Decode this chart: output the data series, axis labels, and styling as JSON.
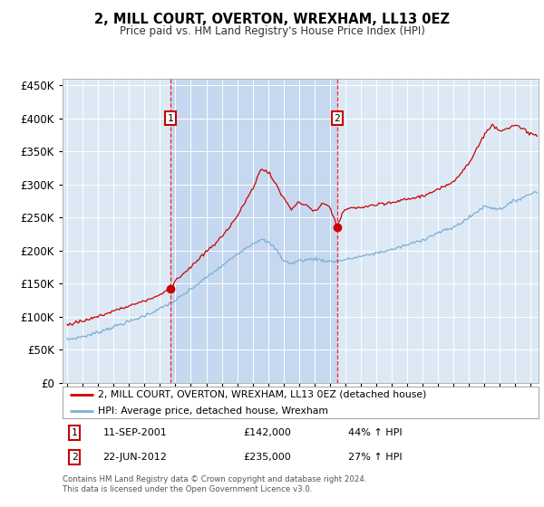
{
  "title": "2, MILL COURT, OVERTON, WREXHAM, LL13 0EZ",
  "subtitle": "Price paid vs. HM Land Registry's House Price Index (HPI)",
  "plot_bg_color": "#dce9f5",
  "shaded_bg_color": "#c5d8ef",
  "property_color": "#cc0000",
  "hpi_color": "#7bafd4",
  "ylim": [
    0,
    460000
  ],
  "yticks": [
    0,
    50000,
    100000,
    150000,
    200000,
    250000,
    300000,
    350000,
    400000,
    450000
  ],
  "ytick_labels": [
    "£0",
    "£50K",
    "£100K",
    "£150K",
    "£200K",
    "£250K",
    "£300K",
    "£350K",
    "£400K",
    "£450K"
  ],
  "purchase1_date": 2001.7,
  "purchase1_price": 142000,
  "purchase2_date": 2012.47,
  "purchase2_price": 235000,
  "legend_property": "2, MILL COURT, OVERTON, WREXHAM, LL13 0EZ (detached house)",
  "legend_hpi": "HPI: Average price, detached house, Wrexham",
  "footer": "Contains HM Land Registry data © Crown copyright and database right 2024.\nThis data is licensed under the Open Government Licence v3.0.",
  "xmin": 1994.7,
  "xmax": 2025.5
}
